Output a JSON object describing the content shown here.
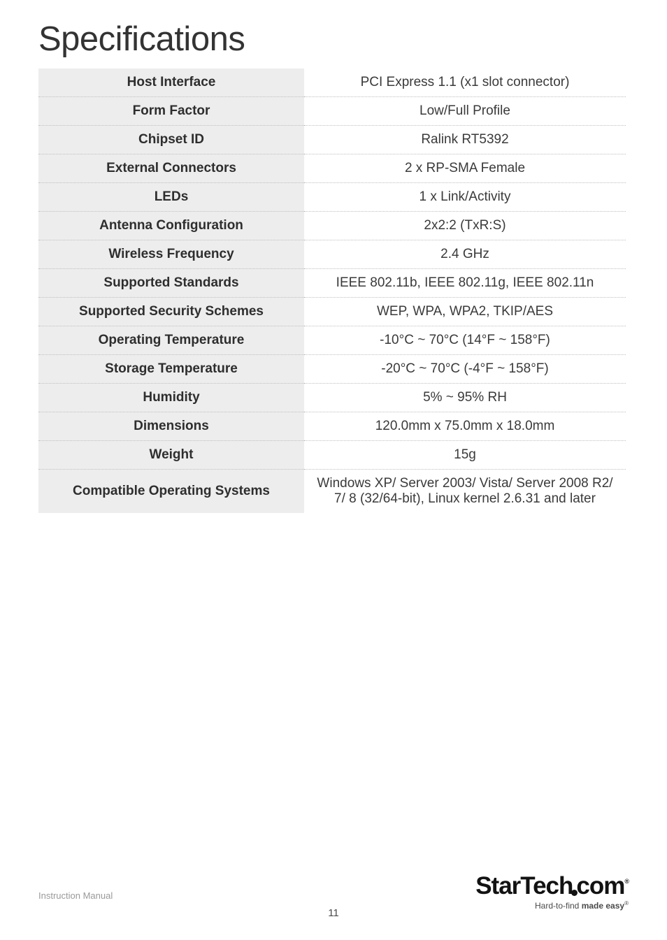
{
  "page": {
    "title": "Specifications",
    "footer_left": "Instruction Manual",
    "page_number": "11",
    "logo_text": "StarTech",
    "logo_suffix": "com",
    "logo_tagline_prefix": "Hard-to-find ",
    "logo_tagline_bold": "made easy"
  },
  "spec_table": {
    "background_key": "#ededed",
    "background_val": "#ffffff",
    "border_color": "#bfbfbf",
    "font_size": 19,
    "rows": [
      {
        "key": "Host Interface",
        "val": "PCI Express 1.1 (x1 slot connector)"
      },
      {
        "key": "Form Factor",
        "val": "Low/Full Profile"
      },
      {
        "key": "Chipset ID",
        "val": "Ralink RT5392"
      },
      {
        "key": "External Connectors",
        "val": "2 x RP-SMA Female"
      },
      {
        "key": "LEDs",
        "val": "1 x Link/Activity"
      },
      {
        "key": "Antenna Configuration",
        "val": "2x2:2 (TxR:S)"
      },
      {
        "key": "Wireless Frequency",
        "val": "2.4 GHz"
      },
      {
        "key": "Supported Standards",
        "val": "IEEE 802.11b, IEEE 802.11g, IEEE 802.11n"
      },
      {
        "key": "Supported Security Schemes",
        "val": "WEP, WPA, WPA2, TKIP/AES"
      },
      {
        "key": "Operating Temperature",
        "val": "-10°C ~ 70°C (14°F ~ 158°F)"
      },
      {
        "key": "Storage Temperature",
        "val": "-20°C ~ 70°C (-4°F ~ 158°F)"
      },
      {
        "key": "Humidity",
        "val": "5% ~ 95% RH"
      },
      {
        "key": "Dimensions",
        "val": "120.0mm x 75.0mm x 18.0mm"
      },
      {
        "key": "Weight",
        "val": "15g"
      },
      {
        "key": "Compatible Operating Systems",
        "val": "Windows XP/ Server 2003/ Vista/ Server 2008 R2/ 7/ 8 (32/64-bit), Linux kernel 2.6.31 and later"
      }
    ]
  }
}
